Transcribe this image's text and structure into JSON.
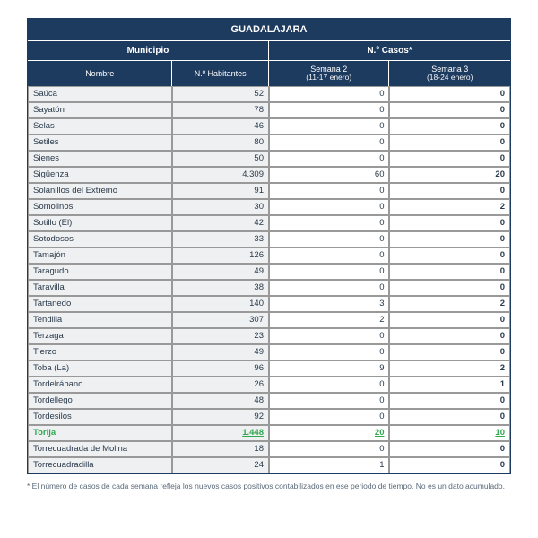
{
  "table": {
    "title": "GUADALAJARA",
    "group_left": "Municipio",
    "group_right": "N.º Casos*",
    "columns": {
      "name": "Nombre",
      "hab": "N.º Habitantes",
      "s2_main": "Semana 2",
      "s2_sub": "(11-17 enero)",
      "s3_main": "Semana 3",
      "s3_sub": "(18-24 enero)"
    },
    "rows": [
      {
        "name": "Saúca",
        "hab": "52",
        "s2": "0",
        "s3": "0"
      },
      {
        "name": "Sayatón",
        "hab": "78",
        "s2": "0",
        "s3": "0"
      },
      {
        "name": "Selas",
        "hab": "46",
        "s2": "0",
        "s3": "0"
      },
      {
        "name": "Setiles",
        "hab": "80",
        "s2": "0",
        "s3": "0"
      },
      {
        "name": "Sienes",
        "hab": "50",
        "s2": "0",
        "s3": "0"
      },
      {
        "name": "Sigüenza",
        "hab": "4.309",
        "s2": "60",
        "s3": "20"
      },
      {
        "name": "Solanillos del Extremo",
        "hab": "91",
        "s2": "0",
        "s3": "0"
      },
      {
        "name": "Somolinos",
        "hab": "30",
        "s2": "0",
        "s3": "2"
      },
      {
        "name": "Sotillo (El)",
        "hab": "42",
        "s2": "0",
        "s3": "0"
      },
      {
        "name": "Sotodosos",
        "hab": "33",
        "s2": "0",
        "s3": "0"
      },
      {
        "name": "Tamajón",
        "hab": "126",
        "s2": "0",
        "s3": "0"
      },
      {
        "name": "Taragudo",
        "hab": "49",
        "s2": "0",
        "s3": "0"
      },
      {
        "name": "Taravilla",
        "hab": "38",
        "s2": "0",
        "s3": "0"
      },
      {
        "name": "Tartanedo",
        "hab": "140",
        "s2": "3",
        "s3": "2"
      },
      {
        "name": "Tendilla",
        "hab": "307",
        "s2": "2",
        "s3": "0"
      },
      {
        "name": "Terzaga",
        "hab": "23",
        "s2": "0",
        "s3": "0"
      },
      {
        "name": "Tierzo",
        "hab": "49",
        "s2": "0",
        "s3": "0"
      },
      {
        "name": "Toba (La)",
        "hab": "96",
        "s2": "9",
        "s3": "2"
      },
      {
        "name": "Tordelrábano",
        "hab": "26",
        "s2": "0",
        "s3": "1"
      },
      {
        "name": "Tordellego",
        "hab": "48",
        "s2": "0",
        "s3": "0"
      },
      {
        "name": "Tordesilos",
        "hab": "92",
        "s2": "0",
        "s3": "0"
      },
      {
        "name": "Torija",
        "hab": "1.448",
        "s2": "20",
        "s3": "10",
        "highlight": true
      },
      {
        "name": "Torrecuadrada de Molina",
        "hab": "18",
        "s2": "0",
        "s3": "0"
      },
      {
        "name": "Torrecuadradilla",
        "hab": "24",
        "s2": "1",
        "s3": "0"
      }
    ]
  },
  "footnote": "* El número de casos de cada semana refleja los nuevos casos positivos contabilizados en ese periodo de tiempo. No es un dato acumulado."
}
